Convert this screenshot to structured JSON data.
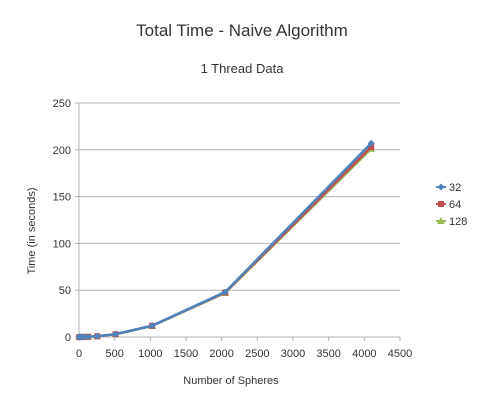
{
  "chart_data": {
    "type": "line",
    "title": "Total Time - Naive Algorithm",
    "subtitle": "1 Thread Data",
    "xlabel": "Number of Spheres",
    "ylabel": "Time (in seconds)",
    "xlim": [
      0,
      4500
    ],
    "ylim": [
      0,
      250
    ],
    "xticks": [
      0,
      500,
      1000,
      1500,
      2000,
      2500,
      3000,
      3500,
      4000,
      4500
    ],
    "yticks": [
      0,
      50,
      100,
      150,
      200,
      250
    ],
    "grid": "horizontal",
    "legend_position": "right",
    "series": [
      {
        "name": "32",
        "color": "#4f81bd",
        "marker": "diamond",
        "x": [
          4,
          8,
          16,
          32,
          64,
          128,
          256,
          512,
          1024,
          2048,
          4096
        ],
        "y": [
          0.0,
          0.0,
          0.0,
          0.01,
          0.05,
          0.2,
          0.75,
          3.0,
          12.0,
          48.0,
          207.0
        ]
      },
      {
        "name": "64",
        "color": "#c0504d",
        "marker": "square",
        "x": [
          4,
          8,
          16,
          32,
          64,
          128,
          256,
          512,
          1024,
          2048,
          4096
        ],
        "y": [
          0.0,
          0.0,
          0.0,
          0.01,
          0.05,
          0.2,
          0.75,
          3.0,
          12.0,
          47.5,
          203.0
        ]
      },
      {
        "name": "128",
        "color": "#9bbb59",
        "marker": "triangle",
        "x": [
          4,
          8,
          16,
          32,
          64,
          128,
          256,
          512,
          1024,
          2048,
          4096
        ],
        "y": [
          0.0,
          0.0,
          0.0,
          0.01,
          0.05,
          0.2,
          0.75,
          3.0,
          11.8,
          47.0,
          201.0
        ]
      }
    ]
  }
}
